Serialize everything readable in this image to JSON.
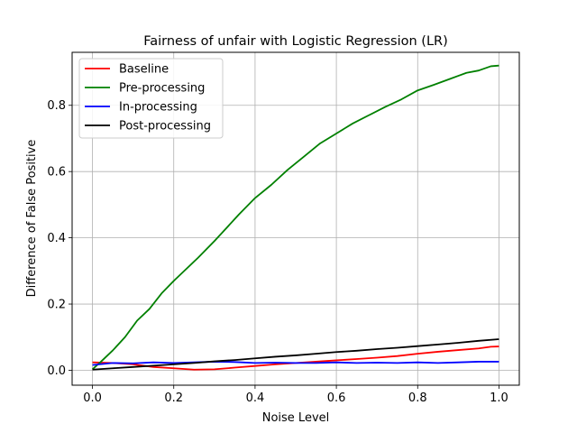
{
  "chart_data": {
    "type": "line",
    "title": "Fairness of unfair with Logistic Regression (LR)",
    "xlabel": "Noise Level",
    "ylabel": "Difference of False Positive",
    "xlim": [
      -0.05,
      1.05
    ],
    "ylim": [
      -0.045,
      0.96
    ],
    "xticks": [
      0.0,
      0.2,
      0.4,
      0.6,
      0.8,
      1.0
    ],
    "xtick_labels": [
      "0.0",
      "0.2",
      "0.4",
      "0.6",
      "0.8",
      "1.0"
    ],
    "yticks": [
      0.0,
      0.2,
      0.4,
      0.6,
      0.8
    ],
    "ytick_labels": [
      "0.0",
      "0.2",
      "0.4",
      "0.6",
      "0.8"
    ],
    "grid": true,
    "legend_position": "top-left",
    "series": [
      {
        "name": "Baseline",
        "color": "#ff0000",
        "x": [
          0.0,
          0.05,
          0.1,
          0.15,
          0.2,
          0.25,
          0.3,
          0.35,
          0.4,
          0.45,
          0.5,
          0.55,
          0.6,
          0.65,
          0.7,
          0.75,
          0.8,
          0.85,
          0.9,
          0.95,
          0.98,
          1.0
        ],
        "y": [
          0.024,
          0.022,
          0.018,
          0.01,
          0.006,
          0.002,
          0.003,
          0.008,
          0.013,
          0.018,
          0.022,
          0.026,
          0.03,
          0.034,
          0.038,
          0.043,
          0.05,
          0.056,
          0.061,
          0.066,
          0.071,
          0.072
        ]
      },
      {
        "name": "Pre-processing",
        "color": "#008000",
        "x": [
          0.0,
          0.02,
          0.05,
          0.08,
          0.11,
          0.14,
          0.17,
          0.2,
          0.23,
          0.26,
          0.3,
          0.33,
          0.36,
          0.4,
          0.44,
          0.48,
          0.52,
          0.56,
          0.6,
          0.64,
          0.68,
          0.72,
          0.76,
          0.8,
          0.84,
          0.88,
          0.92,
          0.95,
          0.98,
          1.0
        ],
        "y": [
          0.003,
          0.025,
          0.06,
          0.1,
          0.15,
          0.185,
          0.232,
          0.27,
          0.305,
          0.34,
          0.39,
          0.43,
          0.47,
          0.52,
          0.56,
          0.605,
          0.645,
          0.685,
          0.715,
          0.745,
          0.77,
          0.795,
          0.818,
          0.845,
          0.862,
          0.88,
          0.898,
          0.905,
          0.918,
          0.92
        ]
      },
      {
        "name": "In-processing",
        "color": "#0000ff",
        "x": [
          0.0,
          0.05,
          0.1,
          0.15,
          0.2,
          0.25,
          0.3,
          0.35,
          0.4,
          0.45,
          0.5,
          0.55,
          0.6,
          0.65,
          0.7,
          0.75,
          0.8,
          0.85,
          0.9,
          0.95,
          1.0
        ],
        "y": [
          0.016,
          0.022,
          0.021,
          0.024,
          0.022,
          0.024,
          0.026,
          0.025,
          0.022,
          0.023,
          0.022,
          0.022,
          0.024,
          0.022,
          0.023,
          0.022,
          0.024,
          0.022,
          0.024,
          0.026,
          0.026
        ]
      },
      {
        "name": "Post-processing",
        "color": "#000000",
        "x": [
          0.0,
          0.05,
          0.1,
          0.15,
          0.2,
          0.25,
          0.3,
          0.35,
          0.4,
          0.45,
          0.5,
          0.55,
          0.6,
          0.65,
          0.7,
          0.75,
          0.8,
          0.85,
          0.9,
          0.95,
          1.0
        ],
        "y": [
          0.002,
          0.006,
          0.01,
          0.014,
          0.018,
          0.022,
          0.027,
          0.031,
          0.036,
          0.041,
          0.045,
          0.05,
          0.055,
          0.059,
          0.064,
          0.068,
          0.073,
          0.078,
          0.083,
          0.089,
          0.094
        ]
      }
    ]
  }
}
